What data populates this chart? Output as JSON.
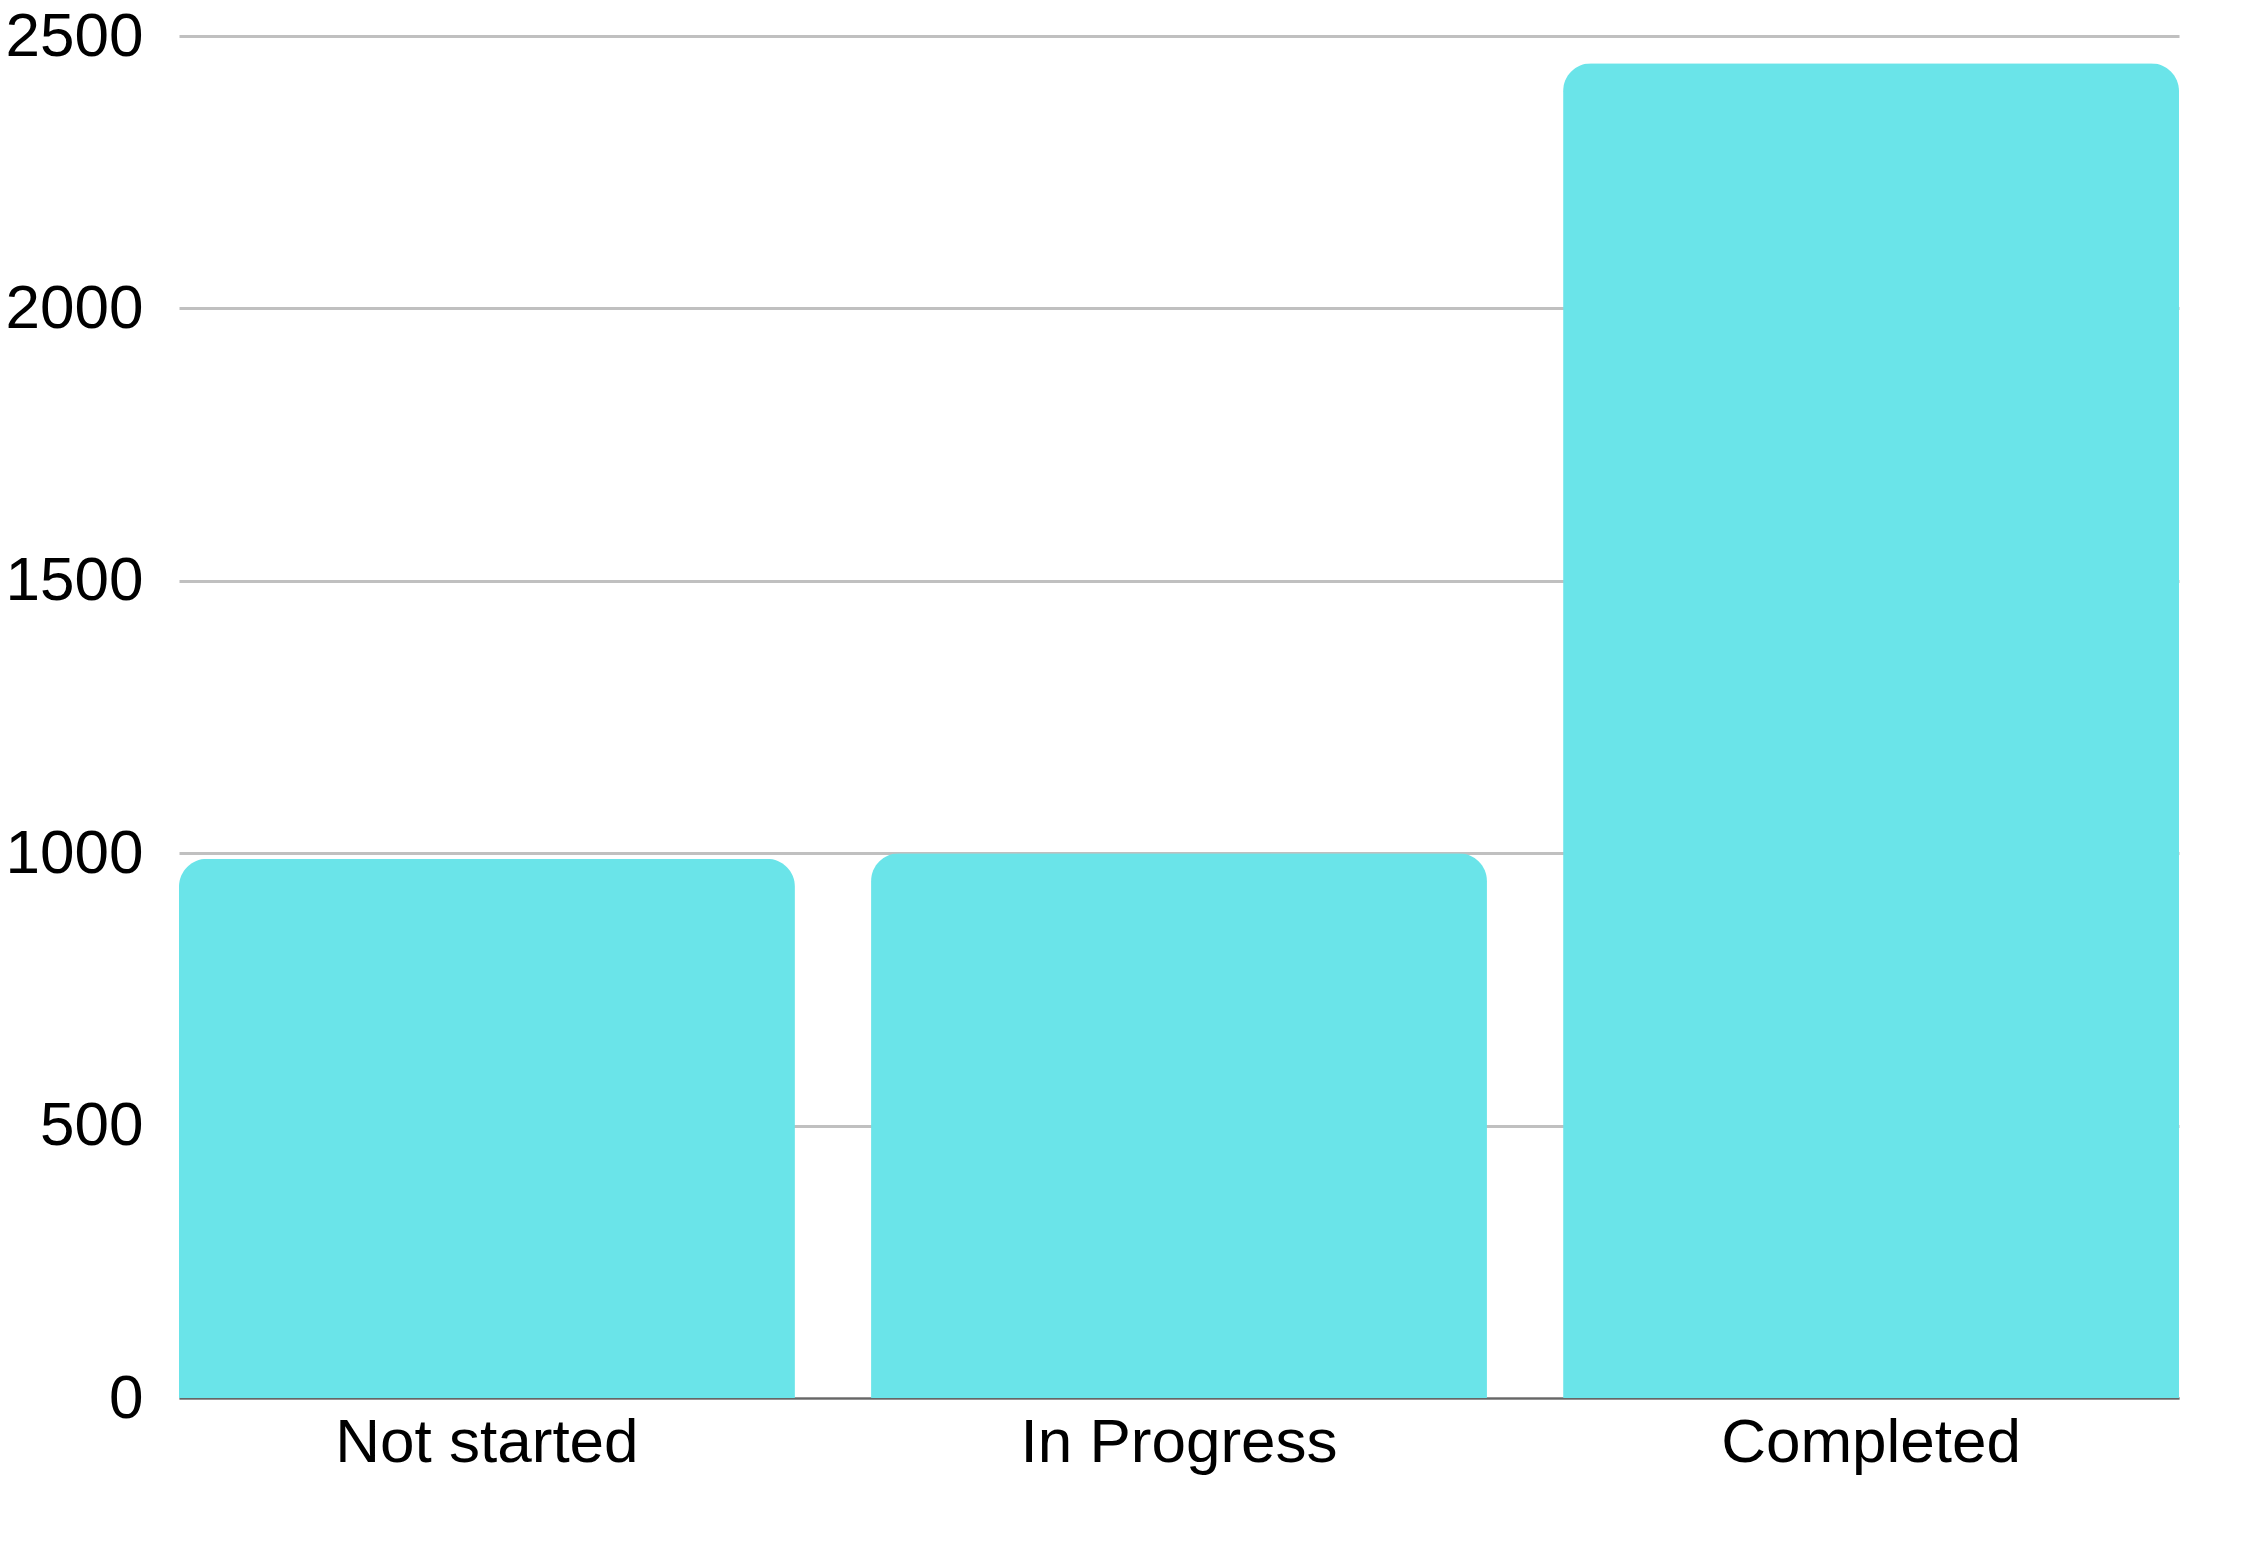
{
  "chart_data": {
    "type": "bar",
    "categories": [
      "Not started",
      "In Progress",
      "Completed"
    ],
    "values": [
      990,
      1000,
      2450
    ],
    "color": "#6ae4e9",
    "ylim": [
      0,
      2500
    ],
    "yticks": [
      0,
      500,
      1000,
      1500,
      2000,
      2500
    ],
    "grid": "y"
  }
}
